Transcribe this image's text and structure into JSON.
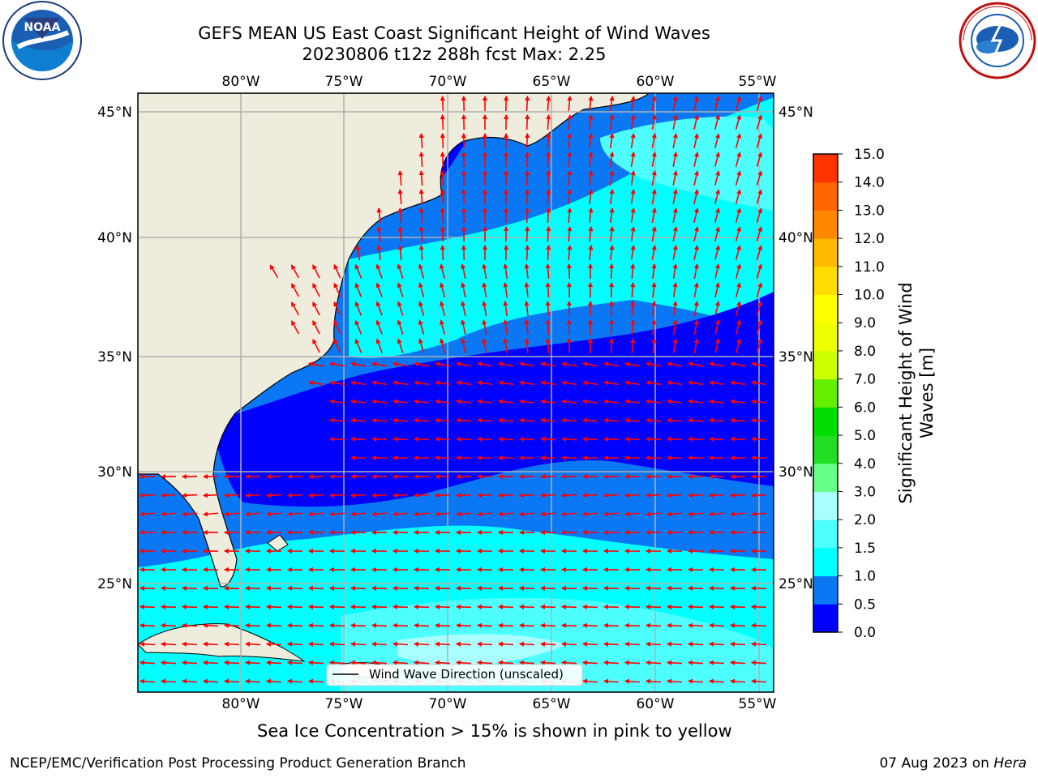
{
  "title": {
    "line1": "GEFS MEAN US East Coast Significant Height of Wind Waves",
    "line2": "20230806 t12z 288h fcst   Max: 2.25"
  },
  "map": {
    "lon_labels": [
      "80°W",
      "75°W",
      "70°W",
      "65°W",
      "60°W",
      "55°W"
    ],
    "lat_labels": [
      "45°N",
      "40°N",
      "35°N",
      "30°N",
      "25°N"
    ],
    "legend_label": "Wind Wave Direction (unscaled)"
  },
  "colorbar": {
    "label": "Significant Height of Wind Waves [m]",
    "label_line1": "Significant Height of Wind",
    "label_line2": "Waves [m]",
    "ticks": [
      "0.0",
      "0.5",
      "1.0",
      "1.5",
      "2.0",
      "3.0",
      "4.0",
      "5.0",
      "6.0",
      "7.0",
      "8.0",
      "9.0",
      "10.0",
      "11.0",
      "12.0",
      "13.0",
      "14.0",
      "15.0"
    ],
    "colors": [
      "#0000ff",
      "#0a78f5",
      "#00ffff",
      "#4dffff",
      "#aaffff",
      "#66ff88",
      "#22dd22",
      "#00dd00",
      "#66ee00",
      "#ccff00",
      "#eeff00",
      "#ffff00",
      "#ffdd00",
      "#ffbb00",
      "#ff8800",
      "#ff6600",
      "#ff3300",
      "#ff0000"
    ]
  },
  "sea_ice_note": "Sea Ice Concentration > 15% is shown in pink to yellow",
  "footer": {
    "left": "NCEP/EMC/Verification Post Processing Product Generation Branch",
    "date": "07 Aug 2023 on ",
    "host": "Hera"
  },
  "logos": {
    "noaa_text": "NOAA",
    "nws_text": "NATIONAL WEATHER SERVICE"
  }
}
